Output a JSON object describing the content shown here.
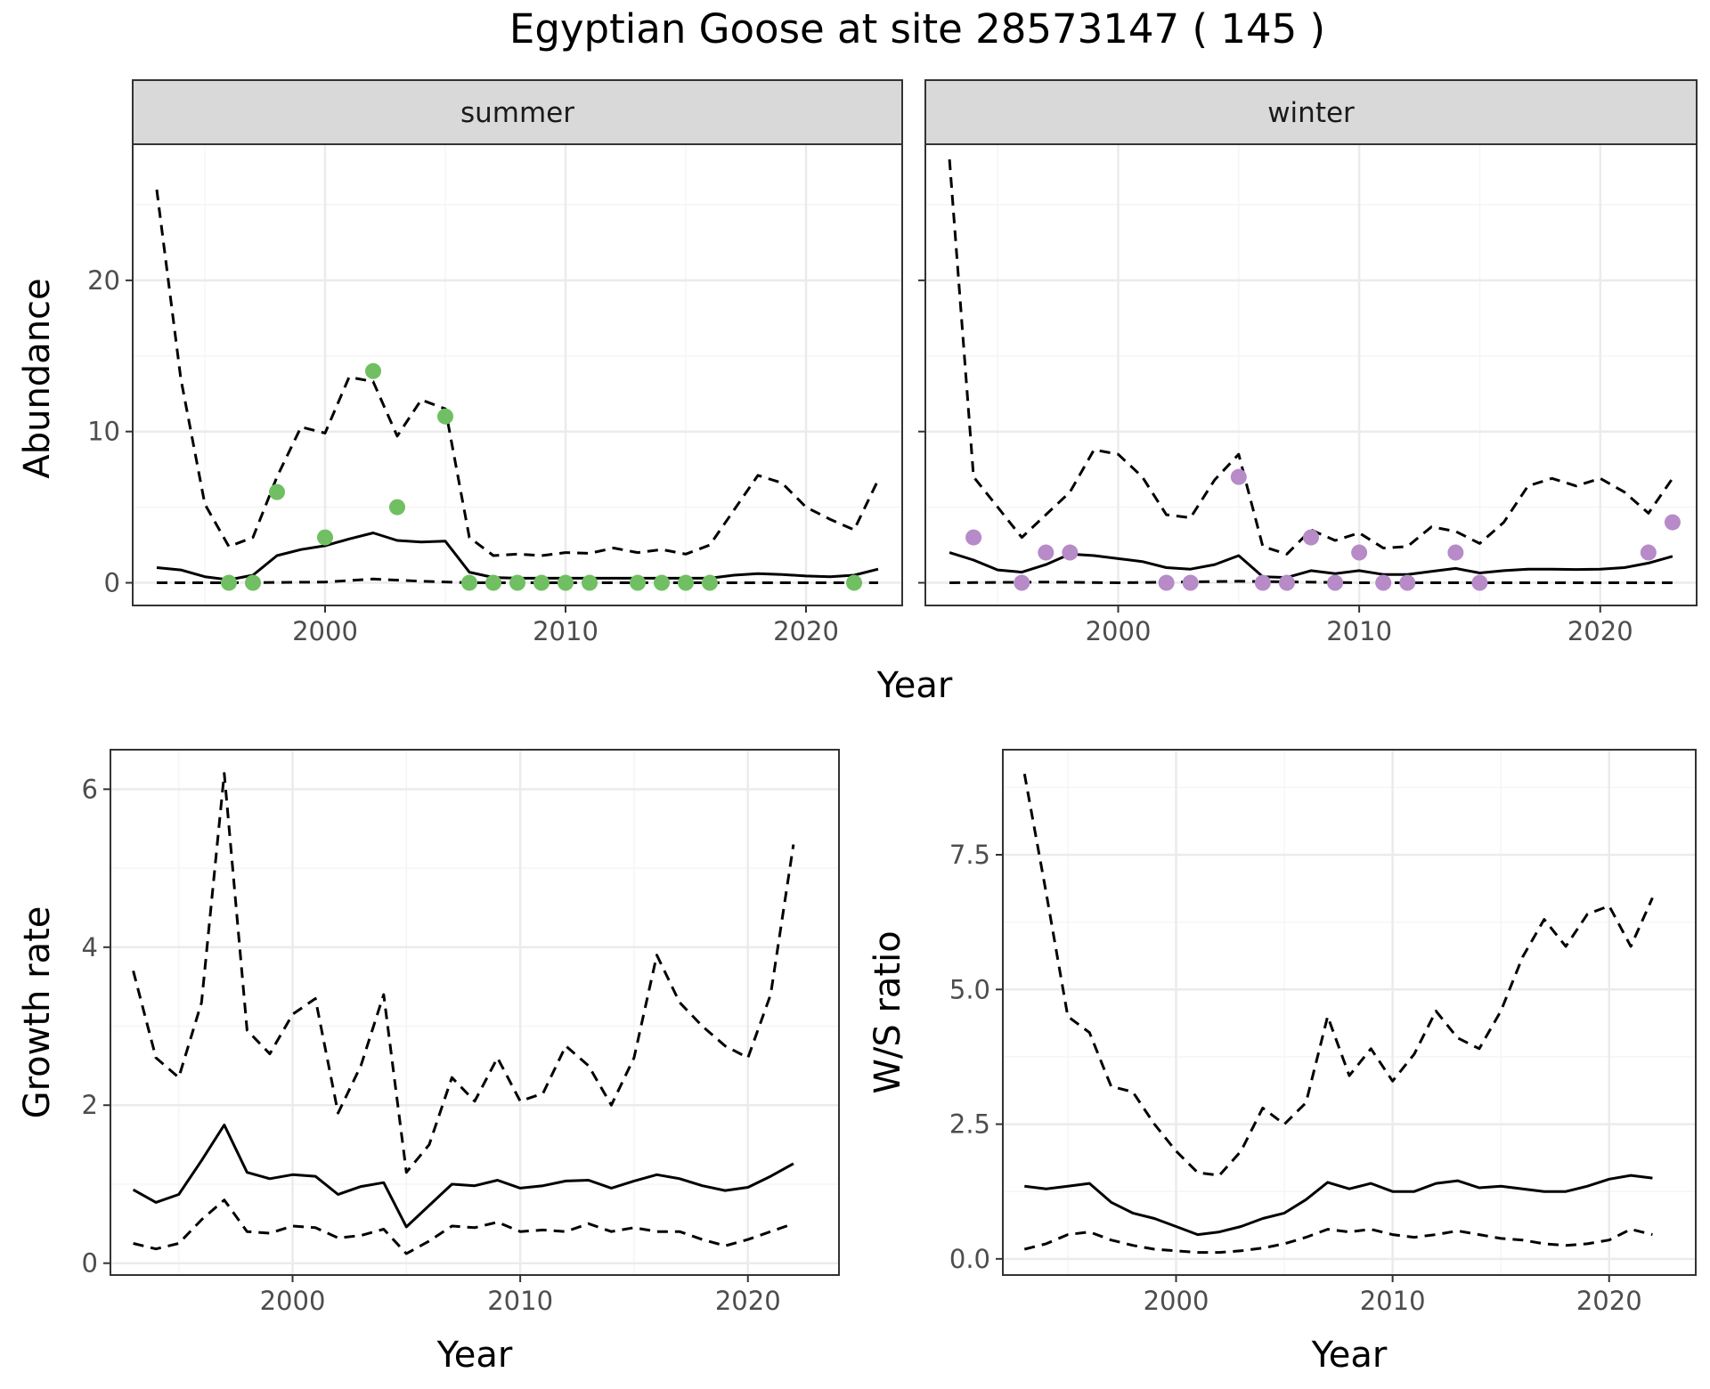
{
  "title": "Egyptian Goose at site 28573147 ( 145 )",
  "colors": {
    "summer_points": "#71bf63",
    "winter_points": "#b78ac8",
    "lines": "#000000",
    "strip_fill": "#d9d9d9",
    "panel_border": "#333333",
    "grid_major": "#ebebeb",
    "grid_minor": "#f5f5f5"
  },
  "chart_data": [
    {
      "type": "line",
      "facet": "summer",
      "xlabel": "Year",
      "ylabel": "Abundance",
      "xlim": [
        1992,
        2024
      ],
      "ylim": [
        -1.5,
        29
      ],
      "x_ticks": [
        2000,
        2010,
        2020
      ],
      "y_ticks": [
        0,
        10,
        20
      ],
      "grid": true,
      "series": [
        {
          "style": "solid",
          "x": [
            1993,
            1994,
            1995,
            1996,
            1997,
            1998,
            1999,
            2000,
            2001,
            2002,
            2003,
            2004,
            2005,
            2006,
            2007,
            2008,
            2009,
            2010,
            2011,
            2012,
            2013,
            2014,
            2015,
            2016,
            2017,
            2018,
            2019,
            2020,
            2021,
            2022,
            2023
          ],
          "y": [
            1.0,
            0.85,
            0.4,
            0.2,
            0.5,
            1.8,
            2.2,
            2.45,
            2.9,
            3.3,
            2.8,
            2.7,
            2.75,
            0.7,
            0.35,
            0.3,
            0.3,
            0.3,
            0.3,
            0.3,
            0.3,
            0.3,
            0.3,
            0.3,
            0.5,
            0.6,
            0.55,
            0.45,
            0.4,
            0.5,
            0.9
          ]
        },
        {
          "style": "dashed",
          "x": [
            1993,
            1994,
            1995,
            1996,
            1997,
            1998,
            1999,
            2000,
            2001,
            2002,
            2003,
            2004,
            2005,
            2006,
            2007,
            2008,
            2009,
            2010,
            2011,
            2012,
            2013,
            2014,
            2015,
            2016,
            2017,
            2018,
            2019,
            2020,
            2021,
            2022,
            2023
          ],
          "y": [
            26,
            13.5,
            5.2,
            2.4,
            3.0,
            7.0,
            10.3,
            9.9,
            13.6,
            13.3,
            9.7,
            12.1,
            11.5,
            3.0,
            1.8,
            1.9,
            1.8,
            2.0,
            1.95,
            2.3,
            2.0,
            2.2,
            1.9,
            2.5,
            4.8,
            7.1,
            6.6,
            5.0,
            4.2,
            3.5,
            6.8
          ]
        },
        {
          "style": "dashed",
          "x": [
            1993,
            1996,
            2000,
            2002,
            2004,
            2006,
            2010,
            2015,
            2020,
            2023
          ],
          "y": [
            0,
            0,
            0.05,
            0.25,
            0.1,
            0,
            0,
            0,
            0,
            0
          ]
        }
      ],
      "points": {
        "x": [
          1996,
          1997,
          1998,
          2000,
          2002,
          2003,
          2005,
          2006,
          2007,
          2008,
          2009,
          2010,
          2011,
          2013,
          2014,
          2015,
          2016,
          2022
        ],
        "y": [
          0,
          0,
          6,
          3,
          14,
          5,
          11,
          0,
          0,
          0,
          0,
          0,
          0,
          0,
          0,
          0,
          0,
          0
        ]
      }
    },
    {
      "type": "line",
      "facet": "winter",
      "xlabel": "Year",
      "ylabel": "Abundance",
      "xlim": [
        1992,
        2024
      ],
      "ylim": [
        -1.5,
        29
      ],
      "x_ticks": [
        2000,
        2010,
        2020
      ],
      "y_ticks": [
        0,
        10,
        20
      ],
      "grid": true,
      "series": [
        {
          "style": "solid",
          "x": [
            1993,
            1994,
            1995,
            1996,
            1997,
            1998,
            1999,
            2000,
            2001,
            2002,
            2003,
            2004,
            2005,
            2006,
            2007,
            2008,
            2009,
            2010,
            2011,
            2012,
            2013,
            2014,
            2015,
            2016,
            2017,
            2018,
            2019,
            2020,
            2021,
            2022,
            2023
          ],
          "y": [
            2.0,
            1.5,
            0.85,
            0.7,
            1.2,
            1.9,
            1.8,
            1.6,
            1.4,
            1.0,
            0.9,
            1.2,
            1.8,
            0.4,
            0.35,
            0.8,
            0.6,
            0.8,
            0.55,
            0.55,
            0.75,
            0.95,
            0.65,
            0.8,
            0.9,
            0.9,
            0.88,
            0.9,
            1.0,
            1.3,
            1.75
          ]
        },
        {
          "style": "dashed",
          "x": [
            1993,
            1994,
            1995,
            1996,
            1997,
            1998,
            1999,
            2000,
            2001,
            2002,
            2003,
            2004,
            2005,
            2006,
            2007,
            2008,
            2009,
            2010,
            2011,
            2012,
            2013,
            2014,
            2015,
            2016,
            2017,
            2018,
            2019,
            2020,
            2021,
            2022,
            2023
          ],
          "y": [
            28,
            7.0,
            5.0,
            3.0,
            4.5,
            6.0,
            8.8,
            8.5,
            7.0,
            4.5,
            4.3,
            6.8,
            8.5,
            2.4,
            1.9,
            3.5,
            2.8,
            3.3,
            2.3,
            2.4,
            3.7,
            3.4,
            2.6,
            4.0,
            6.4,
            6.9,
            6.4,
            6.9,
            6.0,
            4.6,
            6.9
          ]
        },
        {
          "style": "dashed",
          "x": [
            1993,
            1997,
            2000,
            2005,
            2010,
            2015,
            2020,
            2023
          ],
          "y": [
            0,
            0.05,
            0,
            0.1,
            0,
            0,
            0,
            0
          ]
        }
      ],
      "points": {
        "x": [
          1994,
          1996,
          1997,
          1998,
          2002,
          2003,
          2005,
          2006,
          2007,
          2008,
          2009,
          2010,
          2011,
          2012,
          2014,
          2015,
          2022,
          2023
        ],
        "y": [
          3,
          0,
          2,
          2,
          0,
          0,
          7,
          0,
          0,
          3,
          0,
          2,
          0,
          0,
          2,
          0,
          2,
          4
        ]
      }
    },
    {
      "type": "line",
      "xlabel": "Year",
      "ylabel": "Growth rate",
      "xlim": [
        1992,
        2024
      ],
      "ylim": [
        -0.15,
        6.5
      ],
      "x_ticks": [
        2000,
        2010,
        2020
      ],
      "y_ticks": [
        0,
        2,
        4,
        6
      ],
      "grid": true,
      "series": [
        {
          "style": "solid",
          "x": [
            1993,
            1994,
            1995,
            1996,
            1997,
            1998,
            1999,
            2000,
            2001,
            2002,
            2003,
            2004,
            2005,
            2006,
            2007,
            2008,
            2009,
            2010,
            2011,
            2012,
            2013,
            2014,
            2015,
            2016,
            2017,
            2018,
            2019,
            2020,
            2021,
            2022
          ],
          "y": [
            0.93,
            0.77,
            0.87,
            1.3,
            1.75,
            1.15,
            1.07,
            1.12,
            1.1,
            0.87,
            0.97,
            1.02,
            0.46,
            0.73,
            1.0,
            0.98,
            1.05,
            0.95,
            0.98,
            1.04,
            1.05,
            0.95,
            1.04,
            1.12,
            1.07,
            0.98,
            0.92,
            0.96,
            1.1,
            1.26
          ]
        },
        {
          "style": "dashed",
          "x": [
            1993,
            1994,
            1995,
            1996,
            1997,
            1998,
            1999,
            2000,
            2001,
            2002,
            2003,
            2004,
            2005,
            2006,
            2007,
            2008,
            2009,
            2010,
            2011,
            2012,
            2013,
            2014,
            2015,
            2016,
            2017,
            2018,
            2019,
            2020,
            2021,
            2022
          ],
          "y": [
            3.7,
            2.6,
            2.35,
            3.3,
            6.2,
            2.95,
            2.65,
            3.15,
            3.35,
            1.9,
            2.5,
            3.4,
            1.15,
            1.5,
            2.35,
            2.05,
            2.6,
            2.05,
            2.15,
            2.75,
            2.5,
            2.0,
            2.6,
            3.9,
            3.3,
            3.0,
            2.75,
            2.6,
            3.4,
            5.3
          ]
        },
        {
          "style": "dashed",
          "x": [
            1993,
            1994,
            1995,
            1996,
            1997,
            1998,
            1999,
            2000,
            2001,
            2002,
            2003,
            2004,
            2005,
            2006,
            2007,
            2008,
            2009,
            2010,
            2011,
            2012,
            2013,
            2014,
            2015,
            2016,
            2017,
            2018,
            2019,
            2020,
            2021,
            2022
          ],
          "y": [
            0.25,
            0.18,
            0.25,
            0.55,
            0.8,
            0.4,
            0.38,
            0.47,
            0.45,
            0.32,
            0.35,
            0.43,
            0.12,
            0.28,
            0.47,
            0.45,
            0.52,
            0.4,
            0.42,
            0.4,
            0.5,
            0.4,
            0.45,
            0.4,
            0.4,
            0.3,
            0.22,
            0.3,
            0.4,
            0.5
          ]
        }
      ]
    },
    {
      "type": "line",
      "xlabel": "Year",
      "ylabel": "W/S ratio",
      "xlim": [
        1992,
        2024
      ],
      "ylim": [
        -0.3,
        9.45
      ],
      "x_ticks": [
        2000,
        2010,
        2020
      ],
      "y_ticks": [
        0.0,
        2.5,
        5.0,
        7.5
      ],
      "y_tick_labels": [
        "0.0",
        "2.5",
        "5.0",
        "7.5"
      ],
      "grid": true,
      "series": [
        {
          "style": "solid",
          "x": [
            1993,
            1994,
            1995,
            1996,
            1997,
            1998,
            1999,
            2000,
            2001,
            2002,
            2003,
            2004,
            2005,
            2006,
            2007,
            2008,
            2009,
            2010,
            2011,
            2012,
            2013,
            2014,
            2015,
            2016,
            2017,
            2018,
            2019,
            2020,
            2021,
            2022
          ],
          "y": [
            1.35,
            1.3,
            1.35,
            1.4,
            1.05,
            0.85,
            0.75,
            0.6,
            0.45,
            0.5,
            0.6,
            0.75,
            0.85,
            1.1,
            1.42,
            1.3,
            1.4,
            1.25,
            1.25,
            1.4,
            1.45,
            1.32,
            1.35,
            1.3,
            1.25,
            1.25,
            1.35,
            1.48,
            1.55,
            1.5
          ]
        },
        {
          "style": "dashed",
          "x": [
            1993,
            1994,
            1995,
            1996,
            1997,
            1998,
            1999,
            2000,
            2001,
            2002,
            2003,
            2004,
            2005,
            2006,
            2007,
            2008,
            2009,
            2010,
            2011,
            2012,
            2013,
            2014,
            2015,
            2016,
            2017,
            2018,
            2019,
            2020,
            2021,
            2022
          ],
          "y": [
            9.0,
            6.8,
            4.5,
            4.2,
            3.2,
            3.1,
            2.5,
            2.0,
            1.6,
            1.55,
            2.0,
            2.8,
            2.5,
            2.9,
            4.5,
            3.4,
            3.9,
            3.3,
            3.8,
            4.6,
            4.1,
            3.9,
            4.6,
            5.6,
            6.3,
            5.8,
            6.4,
            6.55,
            5.8,
            6.7
          ]
        },
        {
          "style": "dashed",
          "x": [
            1993,
            1994,
            1995,
            1996,
            1997,
            1998,
            1999,
            2000,
            2001,
            2002,
            2003,
            2004,
            2005,
            2006,
            2007,
            2008,
            2009,
            2010,
            2011,
            2012,
            2013,
            2014,
            2015,
            2016,
            2017,
            2018,
            2019,
            2020,
            2021,
            2022
          ],
          "y": [
            0.18,
            0.28,
            0.45,
            0.5,
            0.35,
            0.25,
            0.18,
            0.15,
            0.12,
            0.12,
            0.15,
            0.2,
            0.28,
            0.4,
            0.55,
            0.5,
            0.55,
            0.45,
            0.4,
            0.45,
            0.52,
            0.45,
            0.38,
            0.35,
            0.28,
            0.25,
            0.28,
            0.35,
            0.55,
            0.45
          ]
        }
      ]
    }
  ]
}
